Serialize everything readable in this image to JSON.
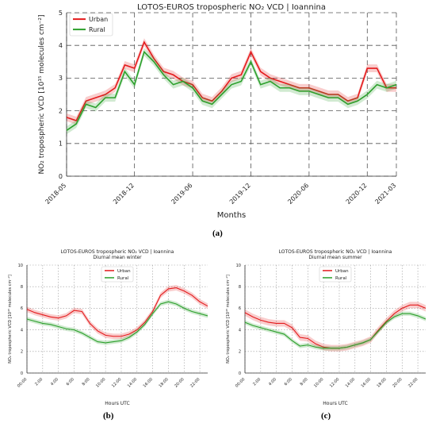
{
  "chart_data": [
    {
      "type": "line",
      "panel": "a",
      "title": "LOTOS-EUROS tropospheric NO₂ VCD | Ioannina",
      "xlabel": "Months",
      "ylabel": "NO₂ tropospheric VCD [10¹⁵ molecules cm⁻²]",
      "xtick_labels": [
        "2018-05",
        "2018-12",
        "2019-06",
        "2019-12",
        "2020-06",
        "2020-12",
        "2021-03"
      ],
      "xtick_index": [
        0,
        7,
        13,
        19,
        25,
        31,
        34
      ],
      "yticks": [
        0,
        1,
        2,
        3,
        4,
        5
      ],
      "ylim": [
        0,
        5
      ],
      "grid": "dashed",
      "legend": "top-left",
      "colors": {
        "Urban": "#e41a1c",
        "Rural": "#2ca02c"
      },
      "series": [
        {
          "name": "Urban",
          "values": [
            1.8,
            1.7,
            2.3,
            2.4,
            2.5,
            2.7,
            3.4,
            3.3,
            4.1,
            3.6,
            3.2,
            3.1,
            2.9,
            2.8,
            2.4,
            2.3,
            2.6,
            3.0,
            3.1,
            3.8,
            3.2,
            3.0,
            2.9,
            2.8,
            2.7,
            2.7,
            2.6,
            2.5,
            2.5,
            2.3,
            2.4,
            3.3,
            3.3,
            2.7,
            2.7
          ],
          "band": 0.12
        },
        {
          "name": "Rural",
          "values": [
            1.4,
            1.6,
            2.2,
            2.1,
            2.4,
            2.4,
            3.2,
            2.8,
            3.8,
            3.5,
            3.1,
            2.8,
            2.9,
            2.7,
            2.3,
            2.2,
            2.5,
            2.8,
            2.9,
            3.5,
            2.8,
            2.9,
            2.7,
            2.7,
            2.6,
            2.6,
            2.5,
            2.4,
            2.4,
            2.2,
            2.3,
            2.5,
            2.8,
            2.7,
            2.8
          ],
          "band": 0.12
        }
      ]
    },
    {
      "type": "line",
      "panel": "b",
      "title": "LOTOS-EUROS tropospheric NO₂ VCD | Ioannina",
      "subtitle": "Diurnal mean winter",
      "xlabel": "Hours UTC",
      "ylabel": "NO₂ tropospheric VCD [10¹⁵ molecules cm⁻²]",
      "xtick_labels": [
        "00:00",
        "2:00",
        "4:00",
        "6:00",
        "8:00",
        "10:00",
        "12:00",
        "14:00",
        "16:00",
        "18:00",
        "20:00",
        "22:00"
      ],
      "yticks": [
        0,
        2,
        4,
        6,
        8,
        10
      ],
      "ylim": [
        0,
        10
      ],
      "grid": "dotted",
      "legend": "upper-center",
      "colors": {
        "Urban": "#e41a1c",
        "Rural": "#2ca02c"
      },
      "series": [
        {
          "name": "Urban",
          "values": [
            5.9,
            5.6,
            5.4,
            5.2,
            5.1,
            5.3,
            5.8,
            5.7,
            4.6,
            3.9,
            3.5,
            3.4,
            3.4,
            3.6,
            4.0,
            4.7,
            5.7,
            7.2,
            7.8,
            7.9,
            7.6,
            7.2,
            6.6,
            6.2
          ],
          "band": 0.25
        },
        {
          "name": "Rural",
          "values": [
            5.0,
            4.8,
            4.6,
            4.5,
            4.3,
            4.1,
            4.0,
            3.7,
            3.3,
            2.9,
            2.8,
            2.9,
            3.0,
            3.3,
            3.8,
            4.5,
            5.5,
            6.4,
            6.6,
            6.4,
            6.0,
            5.7,
            5.5,
            5.3
          ],
          "band": 0.2
        }
      ]
    },
    {
      "type": "line",
      "panel": "c",
      "title": "LOTOS-EUROS tropospheric NO₂ VCD | Ioannina",
      "subtitle": "Diurnal mean summer",
      "xlabel": "Hours UTC",
      "ylabel": "NO₂ tropospheric VCD [10¹⁵ molecules cm⁻²]",
      "xtick_labels": [
        "00:00",
        "2:00",
        "4:00",
        "6:00",
        "8:00",
        "10:00",
        "12:00",
        "14:00",
        "16:00",
        "18:00",
        "20:00",
        "22:00"
      ],
      "yticks": [
        0,
        2,
        4,
        6,
        8,
        10
      ],
      "ylim": [
        0,
        10
      ],
      "grid": "dotted",
      "legend": "upper-center",
      "colors": {
        "Urban": "#e41a1c",
        "Rural": "#2ca02c"
      },
      "series": [
        {
          "name": "Urban",
          "values": [
            5.6,
            5.2,
            4.9,
            4.7,
            4.6,
            4.6,
            4.2,
            3.3,
            3.2,
            2.7,
            2.4,
            2.3,
            2.3,
            2.4,
            2.6,
            2.8,
            3.1,
            4.0,
            4.8,
            5.5,
            6.0,
            6.3,
            6.3,
            6.0
          ],
          "band": 0.3
        },
        {
          "name": "Rural",
          "values": [
            4.7,
            4.4,
            4.2,
            4.0,
            3.8,
            3.6,
            3.0,
            2.5,
            2.6,
            2.4,
            2.3,
            2.3,
            2.3,
            2.4,
            2.6,
            2.8,
            3.1,
            3.9,
            4.7,
            5.2,
            5.5,
            5.5,
            5.3,
            5.0
          ],
          "band": 0.2
        }
      ]
    }
  ],
  "captions": {
    "a": "(a)",
    "b": "(b)",
    "c": "(c)"
  }
}
